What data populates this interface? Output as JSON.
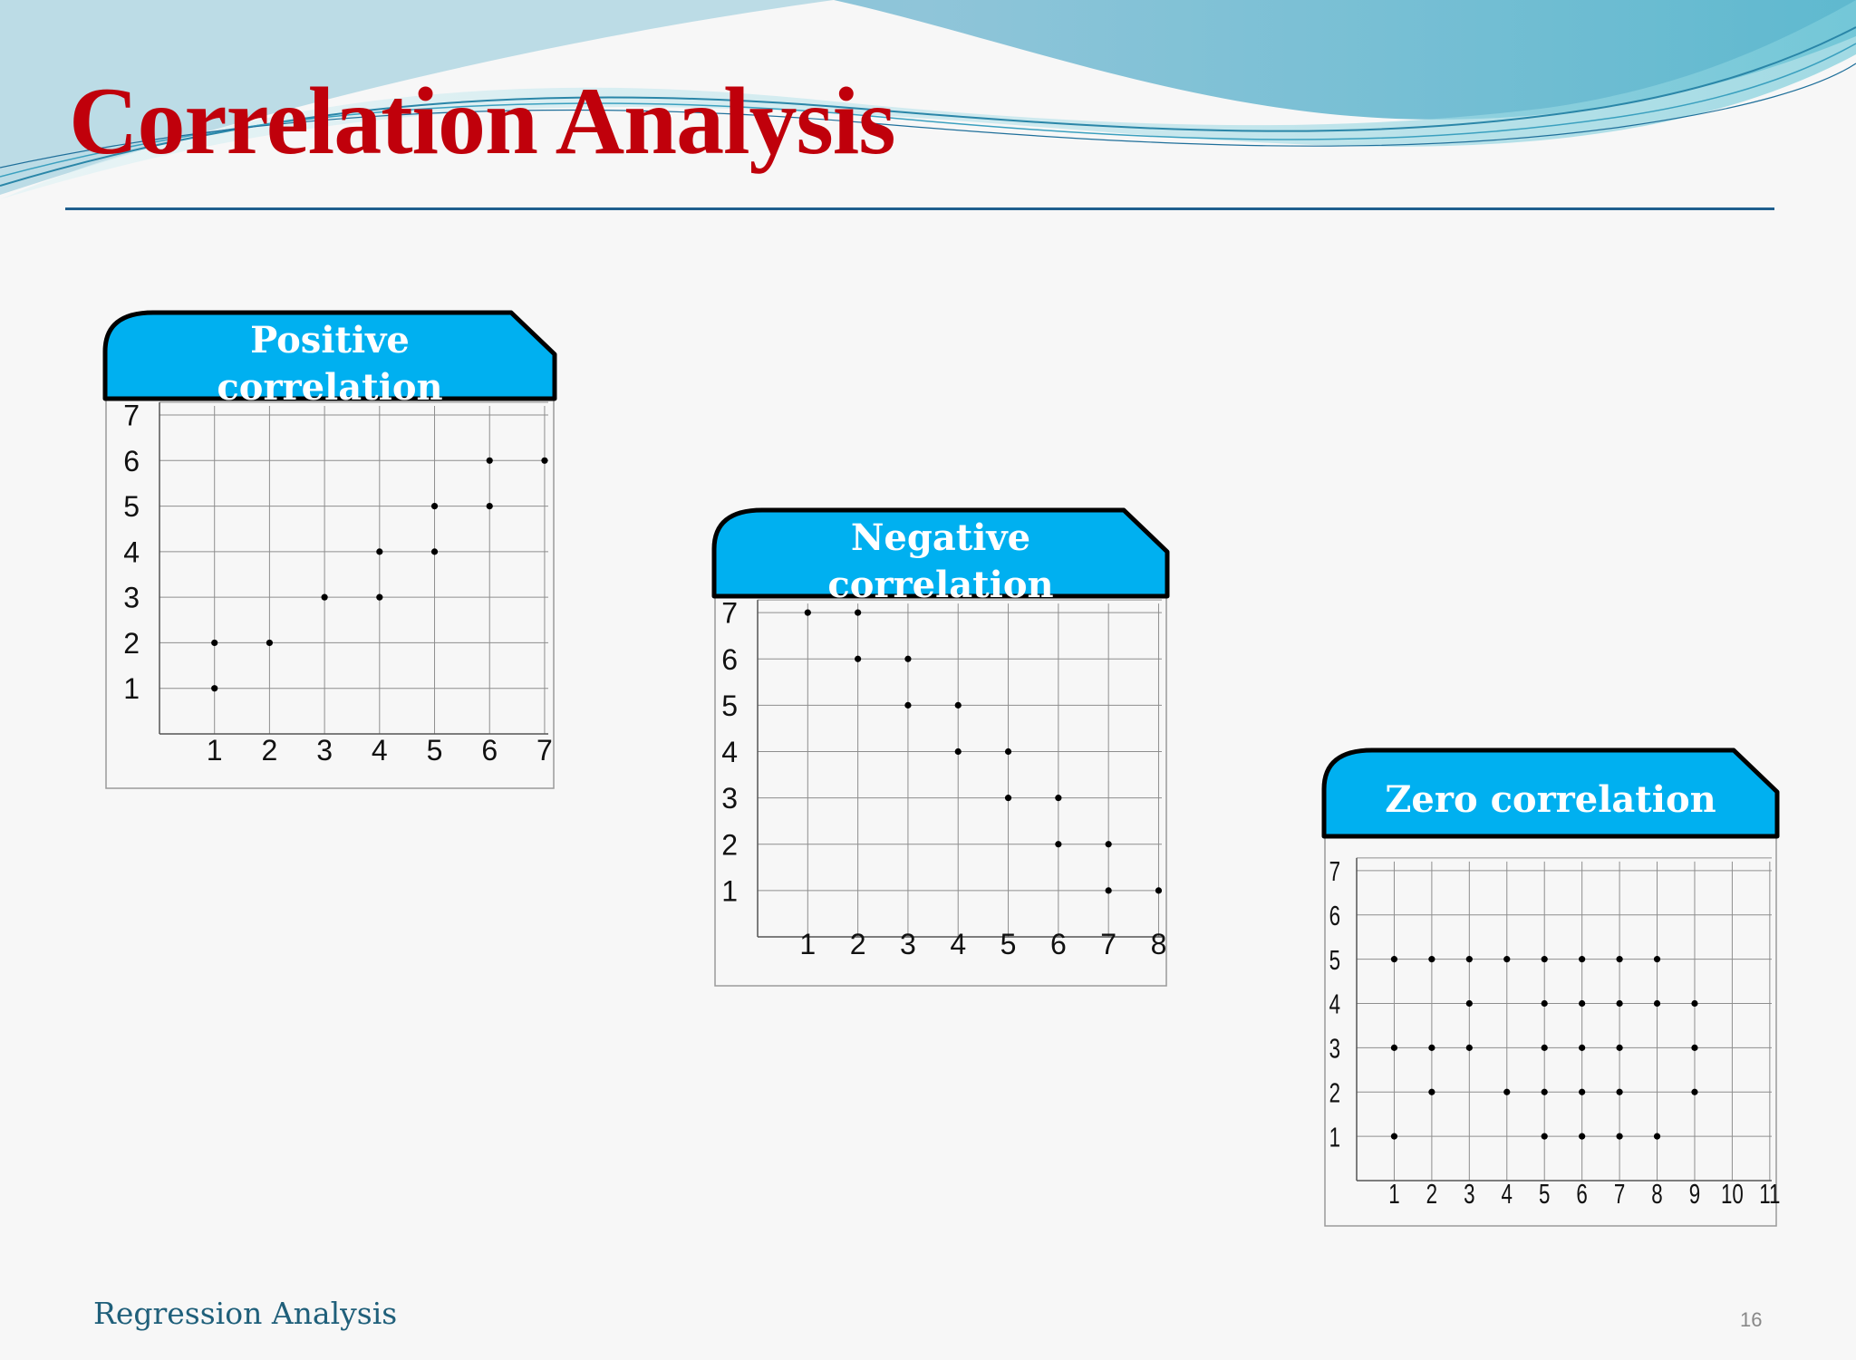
{
  "slide": {
    "title": "Correlation Analysis",
    "footer": "Regression Analysis",
    "page_number": "16"
  },
  "colors": {
    "title": "#c0000b",
    "tab_fill": "#00b0f0",
    "tab_text": "#ffffff",
    "rule": "#1f5f8e",
    "point": "#000000"
  },
  "chart_data": [
    {
      "type": "scatter",
      "title": "Positive correlation",
      "xlim": [
        1,
        7
      ],
      "ylim": [
        1,
        7
      ],
      "x_ticks": [
        1,
        2,
        3,
        4,
        5,
        6,
        7
      ],
      "y_ticks": [
        1,
        2,
        3,
        4,
        5,
        6,
        7
      ],
      "grid": true,
      "points": [
        [
          1,
          1
        ],
        [
          1,
          2
        ],
        [
          2,
          2
        ],
        [
          3,
          3
        ],
        [
          4,
          3
        ],
        [
          4,
          4
        ],
        [
          5,
          4
        ],
        [
          5,
          5
        ],
        [
          6,
          5
        ],
        [
          6,
          6
        ],
        [
          7,
          6
        ]
      ]
    },
    {
      "type": "scatter",
      "title": "Negative correlation",
      "xlim": [
        1,
        8
      ],
      "ylim": [
        1,
        7
      ],
      "x_ticks": [
        1,
        2,
        3,
        4,
        5,
        6,
        7,
        8
      ],
      "y_ticks": [
        1,
        2,
        3,
        4,
        5,
        6,
        7
      ],
      "grid": true,
      "points": [
        [
          1,
          7
        ],
        [
          2,
          7
        ],
        [
          2,
          6
        ],
        [
          3,
          6
        ],
        [
          3,
          5
        ],
        [
          4,
          5
        ],
        [
          4,
          4
        ],
        [
          5,
          4
        ],
        [
          5,
          3
        ],
        [
          6,
          3
        ],
        [
          6,
          2
        ],
        [
          7,
          2
        ],
        [
          7,
          1
        ],
        [
          8,
          1
        ]
      ]
    },
    {
      "type": "scatter",
      "title": "Zero correlation",
      "xlim": [
        1,
        11
      ],
      "ylim": [
        1,
        7
      ],
      "x_ticks": [
        1,
        2,
        3,
        4,
        5,
        6,
        7,
        8,
        9,
        10,
        11
      ],
      "y_ticks": [
        1,
        2,
        3,
        4,
        5,
        6,
        7
      ],
      "grid": true,
      "points": [
        [
          1,
          5
        ],
        [
          1,
          3
        ],
        [
          1,
          1
        ],
        [
          2,
          5
        ],
        [
          2,
          3
        ],
        [
          2,
          2
        ],
        [
          3,
          5
        ],
        [
          3,
          4
        ],
        [
          3,
          3
        ],
        [
          4,
          5
        ],
        [
          4,
          2
        ],
        [
          5,
          5
        ],
        [
          5,
          4
        ],
        [
          5,
          3
        ],
        [
          5,
          2
        ],
        [
          5,
          1
        ],
        [
          6,
          5
        ],
        [
          6,
          4
        ],
        [
          6,
          3
        ],
        [
          6,
          2
        ],
        [
          6,
          1
        ],
        [
          7,
          5
        ],
        [
          7,
          4
        ],
        [
          7,
          3
        ],
        [
          7,
          2
        ],
        [
          7,
          1
        ],
        [
          8,
          5
        ],
        [
          8,
          4
        ],
        [
          8,
          1
        ],
        [
          9,
          4
        ],
        [
          9,
          3
        ],
        [
          9,
          2
        ]
      ]
    }
  ]
}
